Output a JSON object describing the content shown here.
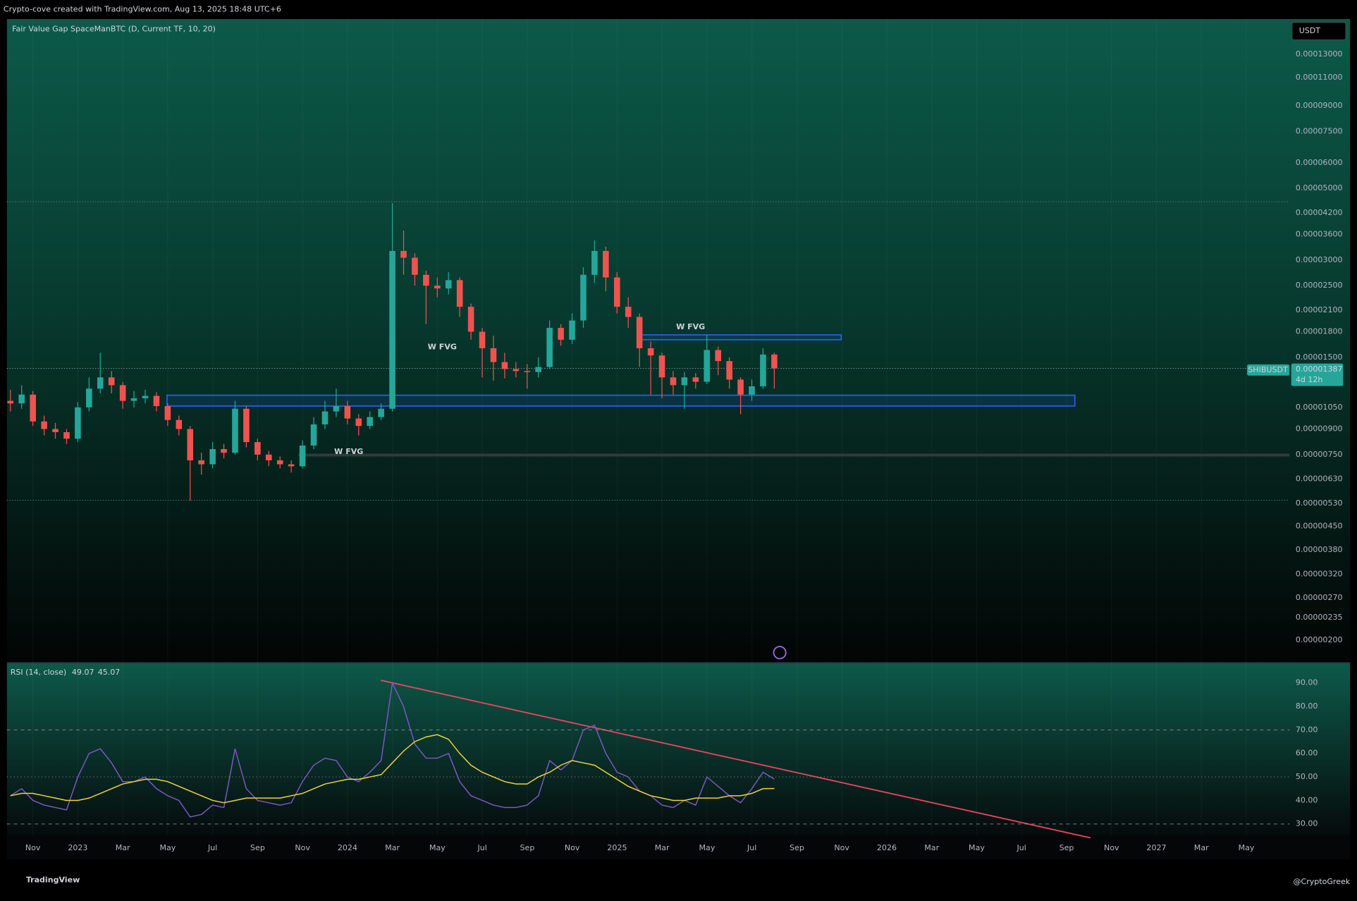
{
  "header": "Crypto-cove created with TradingView.com, Aug 13, 2025 18:48 UTC+6",
  "chart_data": {
    "type": "candlestick",
    "indicator_title": "Fair Value Gap SpaceManBTC (D, Current TF, 10, 20)",
    "currency": "USDT",
    "symbol": "SHIBUSDT",
    "countdown": "4d 12h",
    "last_price": {
      "value": 1.387e-05,
      "label": "0.00001387"
    },
    "log_scale": true,
    "up_color": "#26a69a",
    "down_color": "#ef5350",
    "ylim": [
      1.71e-06,
      0.000167
    ],
    "yticks": [
      {
        "value": 0.00013,
        "label": "0.00013000"
      },
      {
        "value": 0.00011,
        "label": "0.00011000"
      },
      {
        "value": 9e-05,
        "label": "0.00009000"
      },
      {
        "value": 7.5e-05,
        "label": "0.00007500"
      },
      {
        "value": 6e-05,
        "label": "0.00006000"
      },
      {
        "value": 5e-05,
        "label": "0.00005000"
      },
      {
        "value": 4.2e-05,
        "label": "0.00004200"
      },
      {
        "value": 3.6e-05,
        "label": "0.00003600"
      },
      {
        "value": 3e-05,
        "label": "0.00003000"
      },
      {
        "value": 2.5e-05,
        "label": "0.00002500"
      },
      {
        "value": 2.1e-05,
        "label": "0.00002100"
      },
      {
        "value": 1.8e-05,
        "label": "0.00001800"
      },
      {
        "value": 1.5e-05,
        "label": "0.00001500"
      },
      {
        "value": 1.05e-05,
        "label": "0.00001050"
      },
      {
        "value": 9e-06,
        "label": "0.00000900"
      },
      {
        "value": 7.5e-06,
        "label": "0.00000750"
      },
      {
        "value": 6.3e-06,
        "label": "0.00000630"
      },
      {
        "value": 5.3e-06,
        "label": "0.00000530"
      },
      {
        "value": 4.5e-06,
        "label": "0.00000450"
      },
      {
        "value": 3.8e-06,
        "label": "0.00000380"
      },
      {
        "value": 3.2e-06,
        "label": "0.00000320"
      },
      {
        "value": 2.7e-06,
        "label": "0.00000270"
      },
      {
        "value": 2.35e-06,
        "label": "0.00000235"
      },
      {
        "value": 2e-06,
        "label": "0.00000200"
      }
    ],
    "x_labels": [
      "Nov",
      "2023",
      "Mar",
      "May",
      "Jul",
      "Sep",
      "Nov",
      "2024",
      "Mar",
      "May",
      "Jul",
      "Sep",
      "Nov",
      "2025",
      "Mar",
      "May",
      "Jul",
      "Sep",
      "Nov",
      "2026",
      "Mar",
      "May",
      "Jul",
      "Sep",
      "Nov",
      "2027",
      "Mar",
      "May"
    ],
    "ohlc": [
      [
        1.1e-05,
        1.19e-05,
        1.02e-05,
        1.08e-05
      ],
      [
        1.08e-05,
        1.23e-05,
        1.04e-05,
        1.15e-05
      ],
      [
        1.15e-05,
        1.18e-05,
        9.2e-06,
        9.5e-06
      ],
      [
        9.5e-06,
        9.9e-06,
        8.6e-06,
        9e-06
      ],
      [
        9e-06,
        9.4e-06,
        8.4e-06,
        8.8e-06
      ],
      [
        8.8e-06,
        9e-06,
        8.1e-06,
        8.4e-06
      ],
      [
        8.4e-06,
        1.09e-05,
        8.2e-06,
        1.05e-05
      ],
      [
        1.05e-05,
        1.3e-05,
        1.02e-05,
        1.2e-05
      ],
      [
        1.2e-05,
        1.55e-05,
        1.16e-05,
        1.3e-05
      ],
      [
        1.3e-05,
        1.36e-05,
        1.16e-05,
        1.23e-05
      ],
      [
        1.23e-05,
        1.26e-05,
        1.04e-05,
        1.1e-05
      ],
      [
        1.1e-05,
        1.18e-05,
        1.05e-05,
        1.12e-05
      ],
      [
        1.12e-05,
        1.19e-05,
        1.08e-05,
        1.14e-05
      ],
      [
        1.14e-05,
        1.17e-05,
        1.02e-05,
        1.06e-05
      ],
      [
        1.06e-05,
        1.08e-05,
        9.2e-06,
        9.6e-06
      ],
      [
        9.6e-06,
        9.9e-06,
        8.6e-06,
        9e-06
      ],
      [
        9e-06,
        9.2e-06,
        5.4e-06,
        7.2e-06
      ],
      [
        7.2e-06,
        7.6e-06,
        6.5e-06,
        7e-06
      ],
      [
        7e-06,
        8.2e-06,
        6.8e-06,
        7.8e-06
      ],
      [
        7.8e-06,
        8.1e-06,
        7.3e-06,
        7.6e-06
      ],
      [
        7.6e-06,
        1.1e-05,
        7.5e-06,
        1.04e-05
      ],
      [
        1.04e-05,
        1.06e-05,
        7.9e-06,
        8.2e-06
      ],
      [
        8.2e-06,
        8.4e-06,
        7.2e-06,
        7.5e-06
      ],
      [
        7.5e-06,
        7.7e-06,
        6.9e-06,
        7.2e-06
      ],
      [
        7.2e-06,
        7.4e-06,
        6.8e-06,
        7e-06
      ],
      [
        7e-06,
        7.2e-06,
        6.6e-06,
        6.9e-06
      ],
      [
        6.9e-06,
        8.3e-06,
        6.8e-06,
        8e-06
      ],
      [
        8e-06,
        9.8e-06,
        7.8e-06,
        9.3e-06
      ],
      [
        9.3e-06,
        1.1e-05,
        9e-06,
        1.02e-05
      ],
      [
        1.02e-05,
        1.2e-05,
        9.8e-06,
        1.06e-05
      ],
      [
        1.06e-05,
        1.1e-05,
        9.3e-06,
        9.7e-06
      ],
      [
        9.7e-06,
        1e-05,
        8.6e-06,
        9.2e-06
      ],
      [
        9.2e-06,
        1.02e-05,
        9e-06,
        9.8e-06
      ],
      [
        9.8e-06,
        1.08e-05,
        9.6e-06,
        1.04e-05
      ],
      [
        1.04e-05,
        4.5e-05,
        1.02e-05,
        3.2e-05
      ],
      [
        3.2e-05,
        3.7e-05,
        2.7e-05,
        3.05e-05
      ],
      [
        3.05e-05,
        3.15e-05,
        2.5e-05,
        2.7e-05
      ],
      [
        2.7e-05,
        2.78e-05,
        1.9e-05,
        2.5e-05
      ],
      [
        2.5e-05,
        2.65e-05,
        2.3e-05,
        2.45e-05
      ],
      [
        2.45e-05,
        2.75e-05,
        2.35e-05,
        2.6e-05
      ],
      [
        2.6e-05,
        2.65e-05,
        2e-05,
        2.15e-05
      ],
      [
        2.15e-05,
        2.2e-05,
        1.7e-05,
        1.8e-05
      ],
      [
        1.8e-05,
        1.85e-05,
        1.3e-05,
        1.6e-05
      ],
      [
        1.6e-05,
        1.75e-05,
        1.27e-05,
        1.45e-05
      ],
      [
        1.45e-05,
        1.55e-05,
        1.29e-05,
        1.38e-05
      ],
      [
        1.38e-05,
        1.45e-05,
        1.3e-05,
        1.36e-05
      ],
      [
        1.36e-05,
        1.43e-05,
        1.2e-05,
        1.35e-05
      ],
      [
        1.35e-05,
        1.5e-05,
        1.3e-05,
        1.4e-05
      ],
      [
        1.4e-05,
        1.95e-05,
        1.38e-05,
        1.85e-05
      ],
      [
        1.85e-05,
        1.9e-05,
        1.63e-05,
        1.7e-05
      ],
      [
        1.7e-05,
        2.05e-05,
        1.65e-05,
        1.95e-05
      ],
      [
        1.95e-05,
        2.85e-05,
        1.85e-05,
        2.7e-05
      ],
      [
        2.7e-05,
        3.45e-05,
        2.55e-05,
        3.2e-05
      ],
      [
        3.2e-05,
        3.3e-05,
        2.4e-05,
        2.65e-05
      ],
      [
        2.65e-05,
        2.75e-05,
        2.05e-05,
        2.15e-05
      ],
      [
        2.15e-05,
        2.3e-05,
        1.85e-05,
        2e-05
      ],
      [
        2e-05,
        2.05e-05,
        1.4e-05,
        1.6e-05
      ],
      [
        1.6e-05,
        1.68e-05,
        1.15e-05,
        1.52e-05
      ],
      [
        1.52e-05,
        1.55e-05,
        1.12e-05,
        1.3e-05
      ],
      [
        1.3e-05,
        1.36e-05,
        1.15e-05,
        1.23e-05
      ],
      [
        1.23e-05,
        1.35e-05,
        1.04e-05,
        1.3e-05
      ],
      [
        1.3e-05,
        1.34e-05,
        1.2e-05,
        1.26e-05
      ],
      [
        1.26e-05,
        1.76e-05,
        1.24e-05,
        1.58e-05
      ],
      [
        1.58e-05,
        1.62e-05,
        1.32e-05,
        1.46e-05
      ],
      [
        1.46e-05,
        1.5e-05,
        1.2e-05,
        1.28e-05
      ],
      [
        1.28e-05,
        1.3e-05,
        1e-05,
        1.15e-05
      ],
      [
        1.15e-05,
        1.28e-05,
        1.1e-05,
        1.22e-05
      ],
      [
        1.22e-05,
        1.6e-05,
        1.2e-05,
        1.53e-05
      ],
      [
        1.53e-05,
        1.55e-05,
        1.2e-05,
        1.387e-05
      ]
    ],
    "zones": [
      {
        "label": "W FVG",
        "top": 1.145e-05,
        "bottom": 1.06e-05
      },
      {
        "label": "W FVG",
        "top": 1.76e-05,
        "bottom": 1.7e-05
      },
      {
        "label": "W FVG",
        "top": 7.55e-06,
        "bottom": 7.4e-06
      }
    ],
    "rsi": {
      "title": "RSI (14, close)",
      "color": "#7e57c2",
      "ma_color": "#f0d43a",
      "legend_values": [
        49.07,
        45.07
      ],
      "ylim": [
        25.2,
        98.5
      ],
      "yticks": [
        {
          "value": 90,
          "label": "90.00"
        },
        {
          "value": 80,
          "label": "80.00"
        },
        {
          "value": 70,
          "label": "70.00"
        },
        {
          "value": 60,
          "label": "60.00"
        },
        {
          "value": 50,
          "label": "50.00"
        },
        {
          "value": 40,
          "label": "40.00"
        },
        {
          "value": 30,
          "label": "30.00"
        }
      ],
      "bands": [
        70,
        50,
        30
      ],
      "values": [
        42,
        45,
        40,
        38,
        37,
        36,
        50,
        60,
        62,
        56,
        48,
        48,
        50,
        45,
        42,
        40,
        33,
        34,
        38,
        37,
        62,
        45,
        40,
        39,
        38,
        39,
        48,
        55,
        58,
        57,
        50,
        48,
        52,
        57,
        90,
        80,
        64,
        58,
        58,
        60,
        48,
        42,
        40,
        38,
        37,
        37,
        38,
        42,
        57,
        53,
        57,
        70,
        72,
        60,
        52,
        50,
        44,
        42,
        38,
        37,
        40,
        38,
        50,
        46,
        42,
        39,
        45,
        52,
        49.07
      ],
      "ma": [
        42,
        43,
        43,
        42,
        41,
        40,
        40,
        41,
        43,
        45,
        47,
        48,
        49,
        49,
        48,
        46,
        44,
        42,
        40,
        39,
        40,
        41,
        41,
        41,
        41,
        42,
        43,
        45,
        47,
        48,
        49,
        49,
        50,
        51,
        56,
        61,
        65,
        67,
        68,
        66,
        60,
        55,
        52,
        50,
        48,
        47,
        47,
        50,
        52,
        55,
        57,
        56,
        55,
        52,
        49,
        46,
        44,
        42,
        41,
        40,
        40,
        41,
        41,
        41,
        42,
        42,
        43,
        45,
        45.07
      ]
    }
  },
  "branding": {
    "logo": "TradingView",
    "author": "@CryptoGreek"
  }
}
